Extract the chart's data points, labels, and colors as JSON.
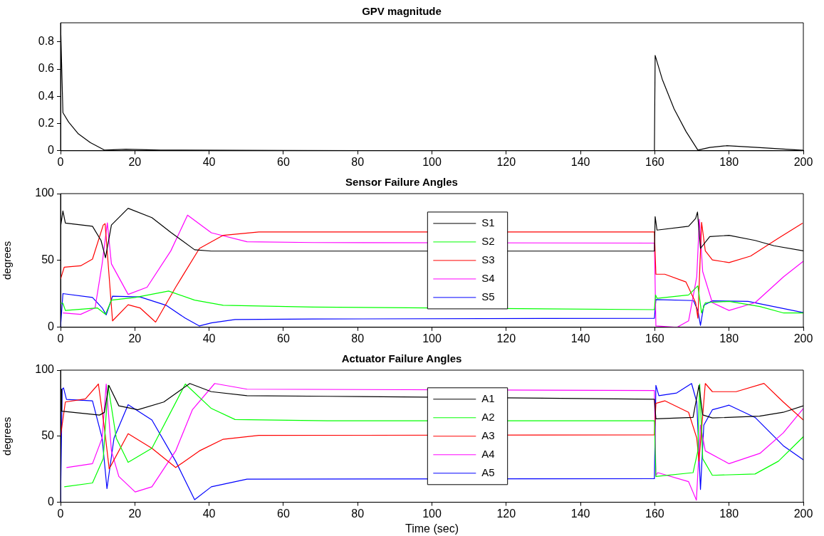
{
  "chart_data": [
    {
      "type": "line",
      "title": "GPV magnitude",
      "xlim": [
        0,
        200
      ],
      "xticks": [
        0,
        20,
        40,
        60,
        80,
        100,
        120,
        140,
        160,
        180,
        200
      ],
      "ylim": [
        0,
        0.94
      ],
      "yticks": [
        0,
        0.2,
        0.4,
        0.6,
        0.8
      ],
      "grid": false,
      "legend": false,
      "marker": "none",
      "line_style": "solid",
      "series": [
        {
          "color": "#000000",
          "x": [
            0,
            0.64,
            2.2,
            4.8,
            8,
            11.8,
            17.6,
            27,
            60,
            159.9,
            160.1,
            162,
            165.2,
            168.4,
            171.6,
            174.8,
            179.3,
            187.6,
            200
          ],
          "values": [
            0.94,
            0.28,
            0.21,
            0.124,
            0.06,
            0.005,
            0.011,
            0.005,
            0.002,
            0,
            0.7,
            0.526,
            0.307,
            0.142,
            0.005,
            0.024,
            0.037,
            0.024,
            0.004
          ]
        }
      ]
    },
    {
      "type": "line",
      "title": "Sensor Failure Angles",
      "ylabel": "degrees",
      "xlim": [
        0,
        200
      ],
      "xticks": [
        0,
        20,
        40,
        60,
        80,
        100,
        120,
        140,
        160,
        180,
        200
      ],
      "ylim": [
        0,
        100
      ],
      "yticks": [
        0,
        50,
        100
      ],
      "grid": false,
      "legend": "center",
      "marker": "none",
      "line_style": "solid",
      "series": [
        {
          "name": "S1",
          "color": "#000000",
          "x": [
            0,
            0.64,
            1.3,
            8.6,
            10.9,
            12.1,
            13.7,
            18.2,
            24.6,
            29.7,
            36.1,
            40.6,
            159.9,
            160.1,
            160.6,
            169.1,
            171,
            171.5,
            172.3,
            174.8,
            180,
            187,
            192.1,
            200
          ],
          "values": [
            75,
            87,
            78,
            75.6,
            65,
            52,
            76.5,
            89,
            82,
            71,
            58,
            57,
            57,
            82.8,
            72.7,
            75.6,
            81.4,
            86.2,
            59,
            67.8,
            68.8,
            65,
            61,
            57.2
          ]
        },
        {
          "name": "S2",
          "color": "#00ff00",
          "x": [
            0,
            0.64,
            1.3,
            9.9,
            12.1,
            13.7,
            20.1,
            29.1,
            36.1,
            43.8,
            68,
            159.9,
            160.2,
            160.6,
            169.1,
            171.6,
            172.6,
            173.6,
            180,
            188.3,
            194.7,
            200
          ],
          "values": [
            18,
            18,
            12.6,
            14.5,
            9.7,
            20.3,
            22.3,
            27.1,
            20.3,
            16.5,
            15.1,
            13.2,
            24.2,
            21.7,
            24.2,
            31,
            10.7,
            18.4,
            19.4,
            15.5,
            10.7,
            10.7
          ]
        },
        {
          "name": "S3",
          "color": "#ff0000",
          "x": [
            0,
            1,
            5.4,
            8.6,
            11.5,
            12,
            14,
            18.2,
            21.4,
            25.6,
            31,
            37.4,
            43.8,
            53.4,
            159.9,
            160.3,
            162.7,
            168.4,
            171,
            171.6,
            172.6,
            173.6,
            175.5,
            180,
            185.8,
            193.4,
            199.8
          ],
          "values": [
            36,
            45,
            46,
            51,
            76.5,
            77.5,
            4.8,
            16.9,
            14.5,
            3.9,
            30,
            59,
            68.8,
            71.3,
            71.3,
            39.7,
            39.7,
            33.9,
            18.4,
            6.8,
            78.5,
            57.2,
            50.4,
            48.4,
            53.3,
            66.9,
            77.9
          ]
        },
        {
          "name": "S4",
          "color": "#ff00ff",
          "x": [
            0.64,
            5.4,
            9.3,
            11.2,
            12.6,
            13.7,
            18.2,
            23.3,
            29.7,
            34.2,
            40.6,
            50.2,
            68,
            159.9,
            160.3,
            166,
            169.1,
            171.3,
            172,
            172.9,
            175.5,
            180,
            187,
            194.7,
            200
          ],
          "values": [
            10.7,
            9.7,
            14.5,
            47.5,
            78.1,
            47.5,
            24.6,
            30,
            57.2,
            83.9,
            70.7,
            64,
            63.4,
            63,
            1,
            0,
            4.8,
            37.8,
            80.8,
            41.7,
            18.4,
            12.6,
            18.4,
            37.8,
            49.4
          ]
        },
        {
          "name": "S5",
          "color": "#0000ff",
          "x": [
            0,
            0.64,
            8.6,
            11.2,
            12.3,
            14,
            21.4,
            28.4,
            33.6,
            37.4,
            40.6,
            47,
            68,
            159.9,
            160.3,
            170.4,
            171.6,
            172.3,
            173.2,
            175.5,
            185.1,
            200
          ],
          "values": [
            0,
            25.2,
            22.3,
            14.5,
            9.3,
            23.3,
            22.7,
            16.5,
            6.8,
            1,
            3.3,
            5.8,
            6.2,
            6.8,
            20.7,
            20,
            12.6,
            1.4,
            16.5,
            19.8,
            19.4,
            11
          ]
        }
      ]
    },
    {
      "type": "line",
      "title": "Actuator Failure Angles",
      "ylabel": "degrees",
      "xlabel": "Time (sec)",
      "xlim": [
        0,
        200
      ],
      "xticks": [
        0,
        20,
        40,
        60,
        80,
        100,
        120,
        140,
        160,
        180,
        200
      ],
      "ylim": [
        0,
        100
      ],
      "yticks": [
        0,
        50,
        100
      ],
      "grid": false,
      "legend": "center",
      "marker": "none",
      "line_style": "solid",
      "series": [
        {
          "name": "A1",
          "color": "#000000",
          "x": [
            0,
            0.2,
            0.3,
            10.5,
            11.8,
            13,
            15.7,
            20.8,
            27.8,
            34.8,
            40.6,
            50.2,
            71.9,
            159.9,
            160.3,
            170.3,
            171.9,
            172.9,
            175.5,
            188.2,
            194.6,
            200
          ],
          "values": [
            80,
            85.6,
            69,
            66,
            68,
            88.5,
            73,
            70,
            75.9,
            89.9,
            83.7,
            80.7,
            80.2,
            78,
            63.2,
            64.2,
            88.5,
            66.1,
            63.8,
            65.2,
            68.1,
            73
          ]
        },
        {
          "name": "A2",
          "color": "#00ff00",
          "x": [
            1,
            8.6,
            11.5,
            12.8,
            15,
            18.2,
            24.6,
            33.6,
            40.6,
            47,
            71.9,
            159.9,
            160.3,
            170.3,
            171.6,
            172.1,
            172.9,
            175.5,
            187,
            193.3,
            200
          ],
          "values": [
            11.7,
            14.6,
            33,
            88.5,
            48.6,
            30.2,
            40.9,
            89.5,
            71,
            62.6,
            61.7,
            61.7,
            19.5,
            22.4,
            38.9,
            89.5,
            33,
            20.4,
            21.4,
            31.1,
            49.6
          ]
        },
        {
          "name": "A3",
          "color": "#ff0000",
          "x": [
            0,
            1.3,
            6.7,
            10.2,
            11.8,
            13.1,
            18.2,
            24.6,
            31,
            37.4,
            43.8,
            53.4,
            159.9,
            160.3,
            162.7,
            169.1,
            171.3,
            171.9,
            173.6,
            175.5,
            181.9,
            189.4,
            194.6,
            200
          ],
          "values": [
            50,
            75.9,
            78.2,
            89.5,
            56.4,
            25.3,
            51.9,
            40.9,
            26.3,
            38.9,
            47.7,
            50.6,
            51,
            74.9,
            76.8,
            68.1,
            48.6,
            31.1,
            89.9,
            83.7,
            83.7,
            90,
            75.9,
            62.3
          ]
        },
        {
          "name": "A4",
          "color": "#ff00ff",
          "x": [
            1.6,
            8.6,
            11.2,
            12.3,
            13.7,
            15.7,
            20.1,
            24.6,
            31,
            35.5,
            41.5,
            50.2,
            159.9,
            160.3,
            160.8,
            169.1,
            171.2,
            172.3,
            173.6,
            180,
            188.3,
            194.6,
            200
          ],
          "values": [
            26.3,
            29.2,
            48.6,
            89.5,
            38.9,
            19.5,
            7.8,
            11.7,
            38.9,
            70,
            89.9,
            85.6,
            84.6,
            20.4,
            22.4,
            15.6,
            1.6,
            58.4,
            38.9,
            29.2,
            37,
            52.5,
            71
          ]
        },
        {
          "name": "A5",
          "color": "#0000ff",
          "x": [
            0,
            0.45,
            0.8,
            1.6,
            8.6,
            11.2,
            12.5,
            14.4,
            18.2,
            24.6,
            31,
            36.1,
            40.6,
            50.2,
            159.9,
            160.3,
            161.1,
            165.9,
            169.9,
            171.3,
            172.3,
            173.2,
            175.5,
            180,
            187,
            194.6,
            200
          ],
          "values": [
            0,
            85.6,
            86.6,
            77.8,
            76.8,
            48.6,
            10.3,
            48.6,
            73.9,
            62.3,
            31.1,
            1.9,
            11.7,
            17.5,
            17.9,
            88.5,
            80.7,
            82.7,
            89.9,
            75.9,
            9.7,
            58.4,
            70,
            73.5,
            64.2,
            42.8,
            32.1
          ]
        }
      ]
    }
  ]
}
